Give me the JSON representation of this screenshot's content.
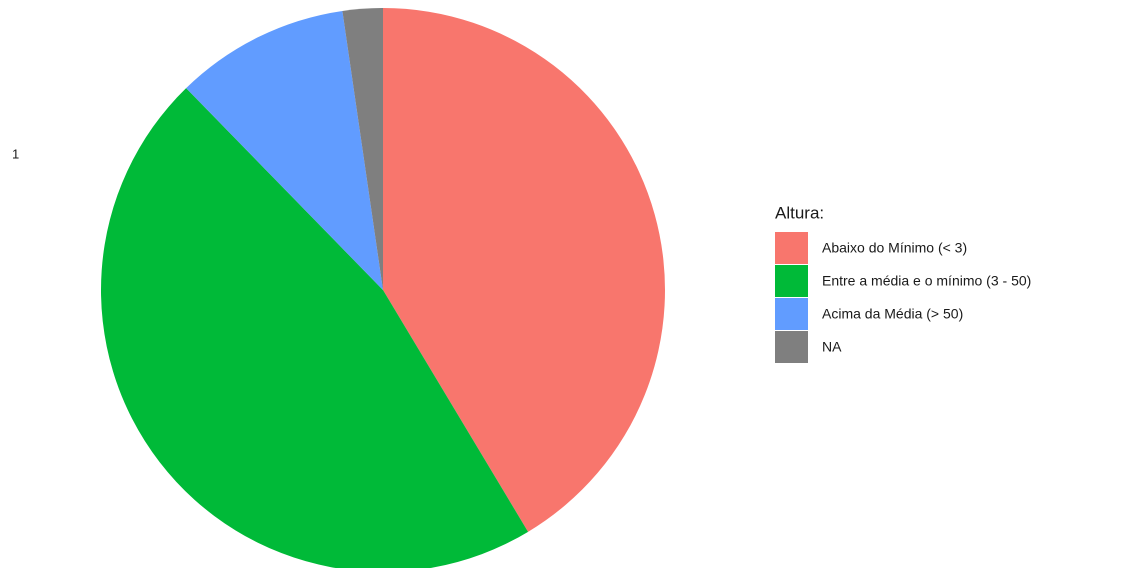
{
  "chart_data": {
    "type": "pie",
    "axis_tick_label": "1",
    "legend_title": "Altura:",
    "categories": [
      "Abaixo do Mínimo (< 3)",
      "Entre a média e o mínimo (3 - 50)",
      "Acima da Média (> 50)",
      "NA"
    ],
    "values": [
      41.4,
      46.3,
      10,
      2.3
    ],
    "colors": [
      "#F8766D",
      "#00BA38",
      "#619CFF",
      "#7F7F7F"
    ],
    "legend": "right"
  }
}
